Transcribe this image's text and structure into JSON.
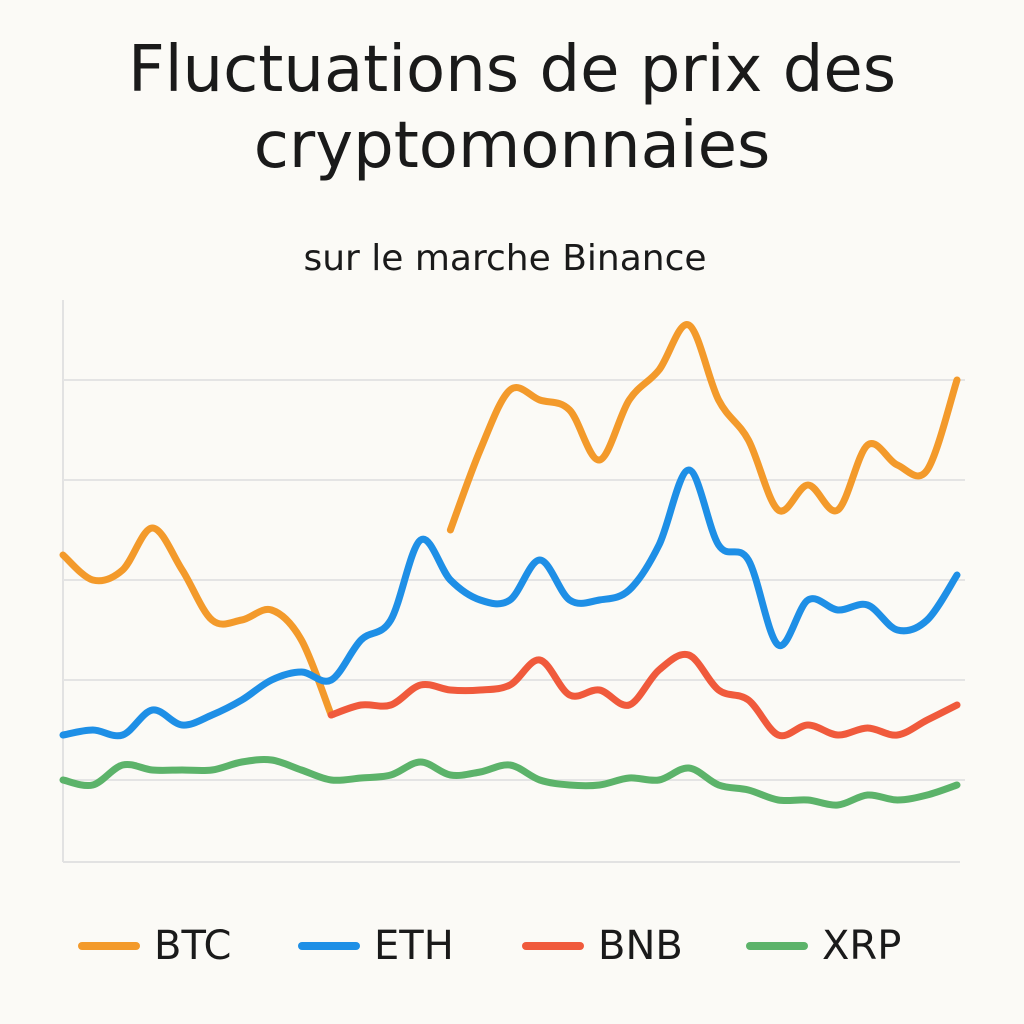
{
  "chart_data": {
    "type": "line",
    "title": "Fluctuations de prix des cryptomonnaies",
    "subtitle": "sur le marche Binance",
    "x": [
      0,
      1,
      2,
      3,
      4,
      5,
      6,
      7,
      8,
      9,
      10,
      11,
      12,
      13,
      14,
      15,
      16,
      17,
      18,
      19,
      20,
      21,
      22,
      23,
      24,
      25,
      26,
      27,
      28,
      29,
      30
    ],
    "xlim": [
      0,
      30
    ],
    "ylim": [
      0.18,
      5.8
    ],
    "yticks": [
      1,
      2,
      3,
      4,
      5
    ],
    "grid": true,
    "legend": "bottom",
    "series": [
      {
        "name": "BTC",
        "color": "#f39a2b",
        "values": [
          3.25,
          3.0,
          3.1,
          3.52,
          3.1,
          2.6,
          2.6,
          2.7,
          2.4,
          1.65,
          null,
          null,
          null,
          3.5,
          4.3,
          4.9,
          4.8,
          4.7,
          4.2,
          4.8,
          5.1,
          5.55,
          4.8,
          4.4,
          3.7,
          3.95,
          3.7,
          4.35,
          4.15,
          4.1,
          5.0
        ]
      },
      {
        "name": "ETH",
        "color": "#1e8fe6",
        "values": [
          1.45,
          1.5,
          1.45,
          1.7,
          1.55,
          1.65,
          1.8,
          2.0,
          2.08,
          2.0,
          2.4,
          2.6,
          3.4,
          3.0,
          2.8,
          2.8,
          3.2,
          2.8,
          2.8,
          2.9,
          3.35,
          4.1,
          3.35,
          3.2,
          2.35,
          2.8,
          2.7,
          2.75,
          2.5,
          2.6,
          3.05
        ]
      },
      {
        "name": "BNB",
        "color": "#f05a3c",
        "values": [
          null,
          null,
          null,
          null,
          null,
          null,
          null,
          null,
          null,
          1.65,
          1.75,
          1.75,
          1.95,
          1.9,
          1.9,
          1.95,
          2.2,
          1.85,
          1.9,
          1.75,
          2.1,
          2.25,
          1.9,
          1.8,
          1.45,
          1.55,
          1.45,
          1.52,
          1.45,
          1.6,
          1.75
        ]
      },
      {
        "name": "XRP",
        "color": "#5cb36a",
        "values": [
          1.0,
          0.95,
          1.15,
          1.1,
          1.1,
          1.1,
          1.18,
          1.2,
          1.1,
          1.0,
          1.02,
          1.05,
          1.18,
          1.05,
          1.08,
          1.15,
          1.0,
          0.95,
          0.95,
          1.02,
          1.0,
          1.12,
          0.95,
          0.9,
          0.8,
          0.8,
          0.75,
          0.85,
          0.8,
          0.85,
          0.95
        ]
      }
    ]
  }
}
